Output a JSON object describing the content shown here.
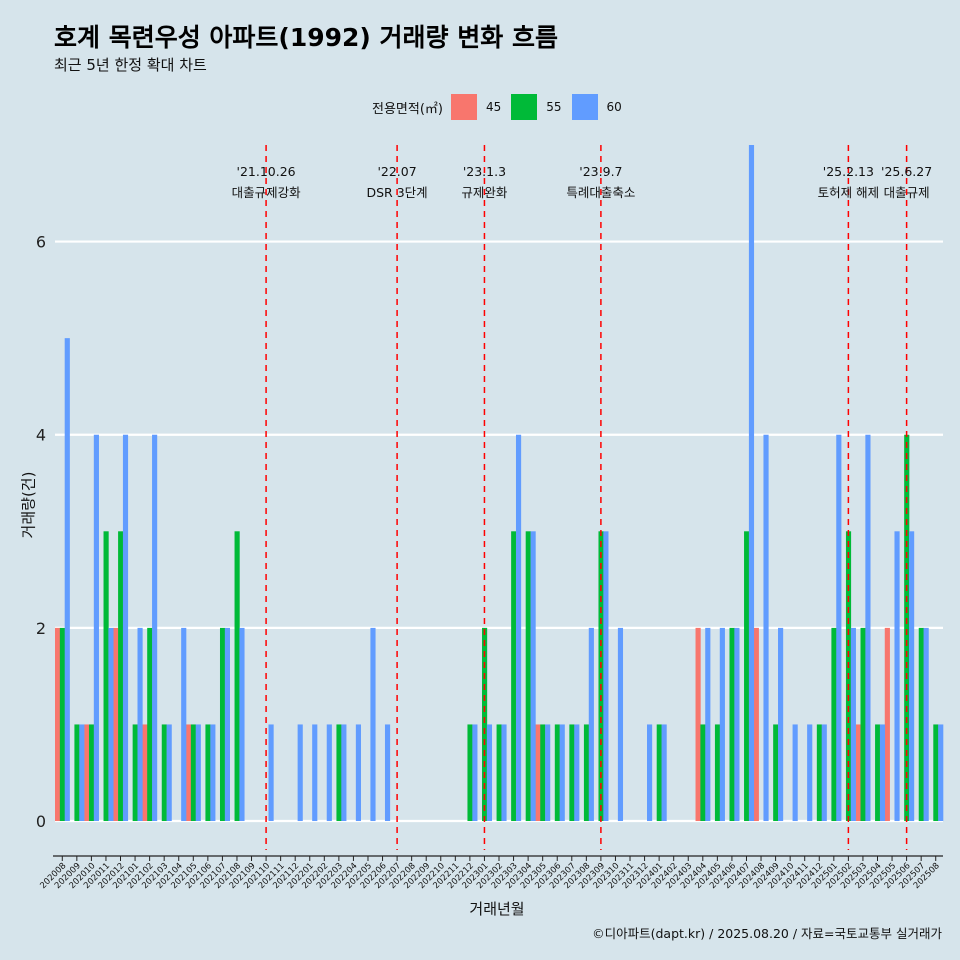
{
  "title": "호계 목련우성 아파트(1992) 거래량 변화 흐름",
  "subtitle": "최근 5년 한정 확대 차트",
  "caption": "©디아파트(dapt.kr) / 2025.08.20 / 자료=국토교통부 실거래가",
  "colors": {
    "s45": "#f8766d",
    "s55": "#00ba38",
    "s60": "#619cff",
    "event_line": "#ff0000",
    "grid": "#ffffff",
    "background": "#d6e4eb"
  },
  "chart_data": {
    "type": "bar",
    "title": "호계 목련우성 아파트(1992) 거래량 변화 흐름",
    "subtitle": "최근 5년 한정 확대 차트",
    "xlabel": "거래년월",
    "ylabel": "거래량(건)",
    "ylim": [
      -0.3,
      7.0
    ],
    "yticks": [
      0,
      2,
      4,
      6
    ],
    "grid": true,
    "legend": {
      "title": "전용면적(㎡)",
      "position": "top",
      "entries": [
        "45",
        "55",
        "60"
      ]
    },
    "categories": [
      "202008",
      "202009",
      "202010",
      "202011",
      "202012",
      "202101",
      "202102",
      "202103",
      "202104",
      "202105",
      "202106",
      "202107",
      "202108",
      "202109",
      "202110",
      "202111",
      "202112",
      "202201",
      "202202",
      "202203",
      "202204",
      "202205",
      "202206",
      "202207",
      "202208",
      "202209",
      "202210",
      "202211",
      "202212",
      "202301",
      "202302",
      "202303",
      "202304",
      "202305",
      "202306",
      "202307",
      "202308",
      "202309",
      "202310",
      "202311",
      "202312",
      "202401",
      "202402",
      "202403",
      "202404",
      "202405",
      "202406",
      "202407",
      "202408",
      "202409",
      "202410",
      "202411",
      "202412",
      "202501",
      "202502",
      "202503",
      "202504",
      "202505",
      "202506",
      "202507",
      "202508"
    ],
    "series": [
      {
        "name": "45",
        "values": [
          2,
          0,
          1,
          0,
          2,
          0,
          1,
          0,
          0,
          1,
          0,
          0,
          0,
          0,
          0,
          0,
          0,
          0,
          0,
          0,
          0,
          0,
          0,
          0,
          0,
          0,
          0,
          0,
          0,
          0,
          0,
          0,
          0,
          1,
          0,
          0,
          0,
          0,
          0,
          0,
          0,
          0,
          0,
          0,
          2,
          0,
          0,
          0,
          2,
          0,
          0,
          0,
          0,
          0,
          0,
          1,
          0,
          2,
          0,
          0,
          0
        ]
      },
      {
        "name": "55",
        "values": [
          2,
          1,
          1,
          3,
          3,
          1,
          2,
          1,
          0,
          1,
          1,
          2,
          3,
          0,
          0,
          0,
          0,
          0,
          0,
          1,
          0,
          0,
          0,
          0,
          0,
          0,
          0,
          0,
          1,
          2,
          1,
          3,
          3,
          1,
          1,
          1,
          1,
          3,
          0,
          0,
          0,
          1,
          0,
          0,
          1,
          1,
          2,
          3,
          0,
          1,
          0,
          0,
          1,
          2,
          3,
          2,
          1,
          0,
          4,
          2,
          1
        ]
      },
      {
        "name": "60",
        "values": [
          5,
          1,
          4,
          2,
          4,
          2,
          4,
          1,
          2,
          1,
          1,
          2,
          2,
          0,
          1,
          0,
          1,
          1,
          1,
          1,
          1,
          2,
          1,
          0,
          0,
          0,
          0,
          0,
          1,
          1,
          1,
          4,
          3,
          1,
          1,
          1,
          2,
          3,
          2,
          0,
          1,
          1,
          0,
          0,
          2,
          2,
          2,
          7,
          4,
          2,
          1,
          1,
          1,
          4,
          2,
          4,
          1,
          3,
          3,
          2,
          1
        ]
      }
    ],
    "events": [
      {
        "date": "'21.10.26",
        "label": "대출규제강화",
        "after": "202110"
      },
      {
        "date": "'22.07",
        "label": "DSR 3단계",
        "after": "202207"
      },
      {
        "date": "'23.1.3",
        "label": "규제완화",
        "after": "202301"
      },
      {
        "date": "'23.9.7",
        "label": "특례대출축소",
        "after": "202309"
      },
      {
        "date": "'25.2.13",
        "label": "토허제 해제",
        "after": "202502"
      },
      {
        "date": "'25.6.27",
        "label": "대출규제",
        "after": "202506"
      }
    ]
  }
}
